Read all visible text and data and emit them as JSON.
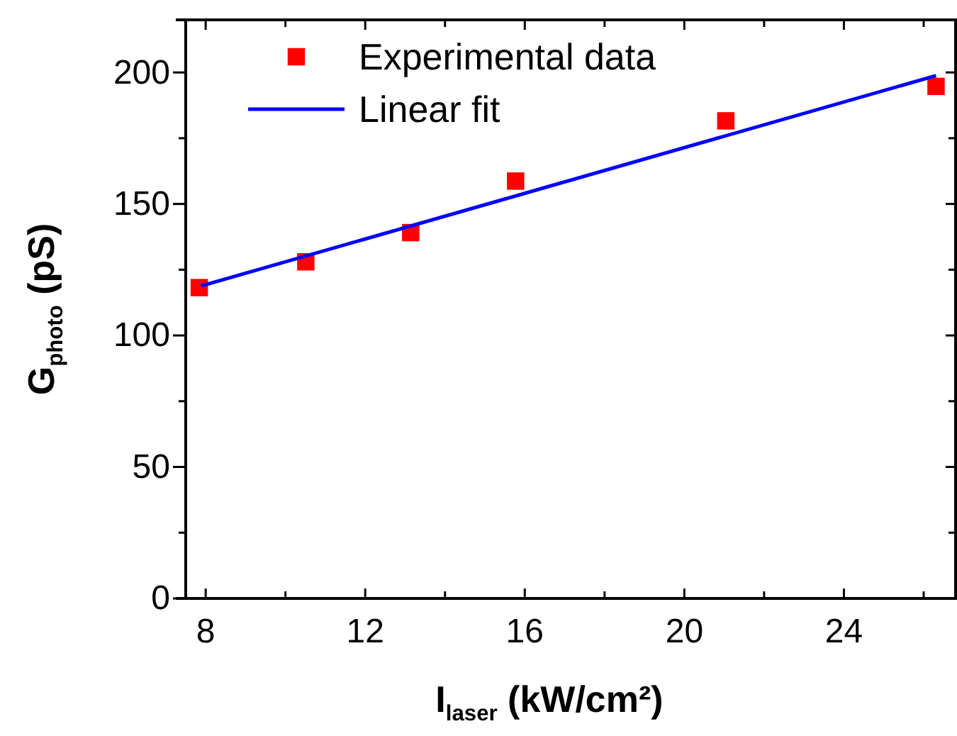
{
  "chart_data": {
    "type": "scatter",
    "xlabel": "I$_{laser}$ (kW/cm²)",
    "ylabel": "G$_{photo}$ (pS)",
    "xlim": [
      7.5,
      26.8
    ],
    "ylim": [
      0,
      220
    ],
    "xticks": [
      8,
      {
        "value": 10,
        "label": null
      },
      12,
      {
        "value": 14,
        "label": null
      },
      16,
      {
        "value": 18,
        "label": null
      },
      20,
      {
        "value": 22,
        "label": null
      },
      24,
      {
        "value": 26,
        "label": null
      }
    ],
    "yticks": [
      0,
      {
        "value": 25,
        "label": null
      },
      50,
      {
        "value": 75,
        "label": null
      },
      100,
      {
        "value": 125,
        "label": null
      },
      150,
      {
        "value": 175,
        "label": null
      },
      200
    ],
    "legend": "top left",
    "grid": false,
    "series": [
      {
        "name": "Experimental data",
        "marker": "square",
        "color": "#ff0000",
        "x": [
          7.84,
          10.51,
          13.14,
          15.77,
          21.04,
          26.31
        ],
        "values": [
          118.2,
          128.0,
          139.1,
          158.7,
          181.6,
          194.7
        ]
      },
      {
        "name": "Linear fit",
        "type": "line",
        "line_style": "solid",
        "color": "#0000ff",
        "x": [
          7.88,
          26.31
        ],
        "values": [
          118.8,
          198.8
        ]
      }
    ]
  }
}
